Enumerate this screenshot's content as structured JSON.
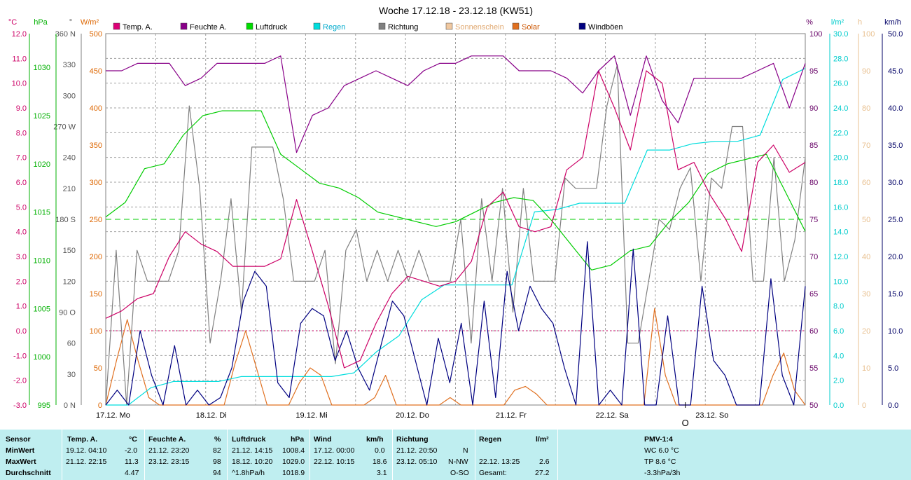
{
  "title": "Woche 17.12.18 - 23.12.18 (KW51)",
  "chart_data": {
    "type": "line",
    "title": "Woche 17.12.18 - 23.12.18 (KW51)",
    "x_labels": [
      "17.12. Mo",
      "18.12. Di",
      "19.12. Mi",
      "20.12. Do",
      "21.12. Fr",
      "22.12. Sa",
      "23.12. So"
    ],
    "axes": [
      {
        "id": "temp",
        "unit": "°C",
        "color": "#cc0066",
        "min": -3,
        "max": 12,
        "ticks": [
          "12.0",
          "11.0",
          "10.0",
          "9.0",
          "8.0",
          "7.0",
          "6.0",
          "5.0",
          "4.0",
          "3.0",
          "2.0",
          "1.0",
          "0.0",
          "-1.0",
          "-2.0",
          "-3.0"
        ]
      },
      {
        "id": "pressure",
        "unit": "hPa",
        "color": "#00b000",
        "min": 995,
        "max": 1033.5,
        "ticks": [
          "1030",
          "1025",
          "1020",
          "1015",
          "1010",
          "1005",
          "1000",
          "995"
        ]
      },
      {
        "id": "direction",
        "unit": "°",
        "color": "#555555",
        "min": 0,
        "max": 360,
        "ticks": [
          "360 N",
          "330",
          "300",
          "270 W",
          "240",
          "210",
          "180 S",
          "150",
          "120",
          "90 O",
          "60",
          "30",
          "0 N"
        ]
      },
      {
        "id": "solar",
        "unit": "W/m²",
        "color": "#dd6600",
        "min": 0,
        "max": 500,
        "ticks": [
          "500",
          "450",
          "400",
          "350",
          "300",
          "250",
          "200",
          "150",
          "100",
          "50",
          "0"
        ]
      },
      {
        "id": "humidity",
        "unit": "%",
        "color": "#660066",
        "min": 50,
        "max": 100,
        "ticks": [
          "100",
          "95",
          "90",
          "85",
          "80",
          "75",
          "70",
          "65",
          "60",
          "55",
          "50"
        ]
      },
      {
        "id": "rain",
        "unit": "l/m²",
        "color": "#00cccc",
        "min": 0,
        "max": 30,
        "ticks": [
          "30.0",
          "28.0",
          "26.0",
          "24.0",
          "22.0",
          "20.0",
          "18.0",
          "16.0",
          "14.0",
          "12.0",
          "10.0",
          "8.0",
          "6.0",
          "4.0",
          "2.0",
          "0.0"
        ]
      },
      {
        "id": "sunshine",
        "unit": "h",
        "color": "#e8c090",
        "min": 0,
        "max": 100,
        "ticks": [
          "100",
          "90",
          "80",
          "70",
          "60",
          "50",
          "40",
          "30",
          "20",
          "10",
          "0"
        ]
      },
      {
        "id": "wind",
        "unit": "km/h",
        "color": "#000066",
        "min": 0,
        "max": 50,
        "ticks": [
          "50.0",
          "45.0",
          "40.0",
          "35.0",
          "30.0",
          "25.0",
          "20.0",
          "15.0",
          "10.0",
          "5.0",
          "0.0"
        ]
      }
    ],
    "legend": [
      {
        "name": "Temp. A.",
        "color": "#dd0077"
      },
      {
        "name": "Feuchte A.",
        "color": "#880088"
      },
      {
        "name": "Luftdruck",
        "color": "#00dd00"
      },
      {
        "name": "Regen",
        "color": "#00dddd"
      },
      {
        "name": "Richtung",
        "color": "#808080"
      },
      {
        "name": "Sonnenschein",
        "color": "#f0c8a0"
      },
      {
        "name": "Solar",
        "color": "#e07020"
      },
      {
        "name": "Windböen",
        "color": "#000080"
      }
    ],
    "grid": true,
    "series": [
      {
        "name": "Temp. A.",
        "axis": "temp",
        "color": "#cc0066",
        "values": [
          0.5,
          0.8,
          1.3,
          1.5,
          3.0,
          4.0,
          3.5,
          3.2,
          2.6,
          2.6,
          2.6,
          2.9,
          5.3,
          3.2,
          1.0,
          -1.5,
          -1.2,
          0.3,
          1.5,
          2.2,
          2.0,
          1.8,
          2.0,
          2.8,
          5.0,
          5.6,
          4.2,
          4.0,
          4.2,
          6.5,
          7.0,
          10.5,
          9.0,
          7.3,
          10.5,
          10.0,
          6.5,
          6.8,
          5.5,
          4.5,
          3.2,
          6.8,
          7.5,
          6.4,
          6.8
        ]
      },
      {
        "name": "Feuchte A.",
        "axis": "humidity",
        "color": "#880088",
        "values": [
          95,
          95,
          96,
          96,
          96,
          93,
          94,
          96,
          96,
          96,
          96,
          97,
          84,
          89,
          90,
          93,
          94,
          95,
          94,
          93,
          95,
          96,
          96,
          97,
          97,
          97,
          95,
          95,
          95,
          94,
          92,
          95,
          97,
          89,
          97,
          91,
          88,
          94,
          94,
          94,
          94,
          95,
          96,
          90,
          96
        ]
      },
      {
        "name": "Luftdruck",
        "axis": "pressure",
        "color": "#00cc00",
        "values": [
          1014.5,
          1016,
          1019.5,
          1020,
          1023,
          1025,
          1025.5,
          1025.5,
          1025.5,
          1021,
          1019.5,
          1018,
          1017.5,
          1016.5,
          1015,
          1014.5,
          1014,
          1013.5,
          1014,
          1015,
          1016,
          1016.5,
          1016.2,
          1014,
          1011.5,
          1009,
          1009.5,
          1011,
          1011.5,
          1014,
          1016,
          1019,
          1020,
          1020.5,
          1021,
          1017,
          1013
        ]
      },
      {
        "name": "Regen",
        "axis": "rain",
        "color": "#00dddd",
        "values": [
          0,
          0,
          1.4,
          1.9,
          1.9,
          1.9,
          2.3,
          2.3,
          2.3,
          2.3,
          2.3,
          2.6,
          4.3,
          5.6,
          8.5,
          9.7,
          9.7,
          9.7,
          9.7,
          15.6,
          15.8,
          16.3,
          16.3,
          16.3,
          20.6,
          20.6,
          21.1,
          21.3,
          21.3,
          21.8,
          26.3,
          27.2
        ]
      },
      {
        "name": "Windböen",
        "axis": "wind",
        "color": "#000080",
        "values": [
          0,
          2,
          0,
          10,
          4,
          0,
          8,
          0,
          2,
          0,
          1,
          5,
          14,
          18,
          16,
          3,
          1,
          11,
          13,
          12,
          6,
          10,
          5,
          2,
          8,
          14,
          12,
          6,
          0,
          9,
          3,
          11,
          0,
          14,
          1,
          18,
          10,
          16,
          13,
          11,
          5,
          0,
          22,
          0,
          2,
          0,
          21,
          0,
          0,
          12,
          0,
          0,
          16,
          6,
          4,
          0,
          0,
          0,
          17,
          4,
          0,
          16
        ]
      },
      {
        "name": "Richtung",
        "axis": "direction",
        "color": "#808080",
        "values": [
          0,
          150,
          0,
          150,
          120,
          120,
          120,
          150,
          290,
          210,
          60,
          120,
          200,
          90,
          250,
          250,
          250,
          200,
          120,
          120,
          120,
          150,
          40,
          150,
          170,
          120,
          150,
          120,
          150,
          120,
          150,
          120,
          120,
          120,
          180,
          60,
          200,
          120,
          210,
          90,
          210,
          120,
          120,
          120,
          220,
          210,
          210,
          210,
          290,
          330,
          60,
          60,
          120,
          180,
          170,
          210,
          230,
          120,
          220,
          210,
          270,
          270,
          120,
          120,
          240,
          120,
          160,
          240
        ]
      },
      {
        "name": "Solar",
        "axis": "solar",
        "color": "#e07020",
        "values": [
          0,
          60,
          115,
          60,
          10,
          0,
          0,
          0,
          0,
          0,
          0,
          0,
          55,
          100,
          50,
          0,
          0,
          0,
          30,
          50,
          40,
          0,
          0,
          0,
          0,
          10,
          40,
          0,
          0,
          0,
          0,
          0,
          10,
          0,
          0,
          0,
          0,
          0,
          20,
          25,
          15,
          0,
          0,
          0,
          0,
          0,
          0,
          0,
          0,
          0,
          0,
          130,
          40,
          0,
          0,
          0,
          0,
          0,
          0,
          0,
          0,
          0,
          40,
          70,
          20,
          0
        ]
      }
    ],
    "reference_lines": [
      {
        "axis": "direction",
        "value": 180,
        "style": "dashed",
        "color": "#00cc00"
      },
      {
        "axis": "temp",
        "value": 0,
        "style": "dotted",
        "color": "#cc0066"
      }
    ],
    "annotation_marker": "O"
  },
  "stats": {
    "headers": {
      "sensor": "Sensor",
      "temp": "Temp. A.",
      "temp_unit": "°C",
      "hum": "Feuchte A.",
      "hum_unit": "%",
      "press": "Luftdruck",
      "press_unit": "hPa",
      "wind": "Wind",
      "wind_unit": "km/h",
      "dir": "Richtung",
      "rain": "Regen",
      "rain_unit": "l/m²",
      "pmv": "PMV-1:4"
    },
    "rows": [
      {
        "label": "MinWert",
        "temp_date": "19.12.  04:10",
        "temp_val": "-2.0",
        "hum_date": "21.12.  23:20",
        "hum_val": "82",
        "press_date": "21.12.  14:15",
        "press_val": "1008.4",
        "wind_date": "17.12.  00:00",
        "wind_val": "0.0",
        "dir_date": "21.12.  20:50",
        "dir_val": "N",
        "rain_date": "",
        "rain_val": "",
        "pmv": "WC 6.0 °C"
      },
      {
        "label": "MaxWert",
        "temp_date": "21.12.  22:15",
        "temp_val": "11.3",
        "hum_date": "23.12.  23:15",
        "hum_val": "98",
        "press_date": "18.12.  10:20",
        "press_val": "1029.0",
        "wind_date": "22.12.  10:15",
        "wind_val": "18.6",
        "dir_date": "23.12.  05:10",
        "dir_val": "N-NW",
        "rain_date": "22.12.  13:25",
        "rain_val": "2.6",
        "pmv": "TP 8.6 °C"
      },
      {
        "label": "Durchschnitt",
        "temp_date": "",
        "temp_val": "4.47",
        "hum_date": "",
        "hum_val": "94",
        "press_date": "^1.8hPa/h",
        "press_val": "1018.9",
        "wind_date": "",
        "wind_val": "3.1",
        "dir_date": "",
        "dir_val": "O-SO",
        "rain_date": "Gesamt:",
        "rain_val": "27.2",
        "pmv": "-3.3hPa/3h"
      }
    ]
  }
}
